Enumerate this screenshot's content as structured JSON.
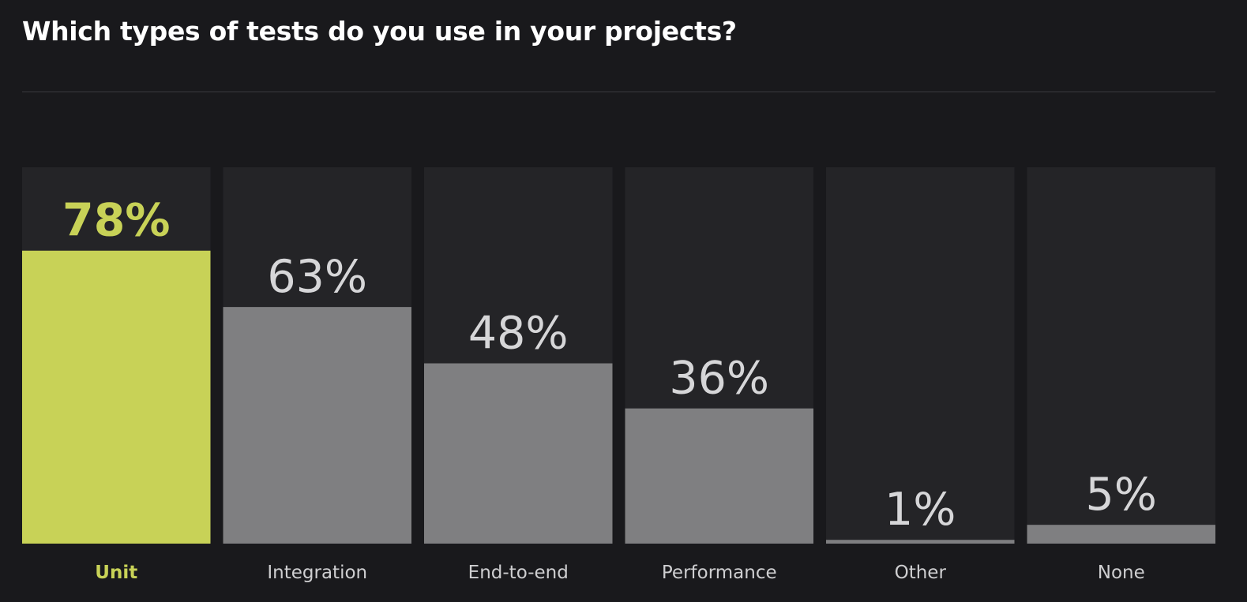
{
  "title": "Which types of tests do you use in your projects?",
  "colors": {
    "background": "#19191c",
    "track": "#242427",
    "bar": "#7f7f81",
    "highlight": "#c8d257",
    "value_text": "#d6d6d8",
    "label_text": "#cfcfd1"
  },
  "chart_data": {
    "type": "bar",
    "categories": [
      "Unit",
      "Integration",
      "End-to-end",
      "Performance",
      "Other",
      "None"
    ],
    "values": [
      78,
      63,
      48,
      36,
      1,
      5
    ],
    "value_labels": [
      "78%",
      "63%",
      "48%",
      "36%",
      "1%",
      "5%"
    ],
    "highlight_index": 0,
    "ylim": [
      0,
      100
    ],
    "grid": false,
    "legend": "none"
  }
}
